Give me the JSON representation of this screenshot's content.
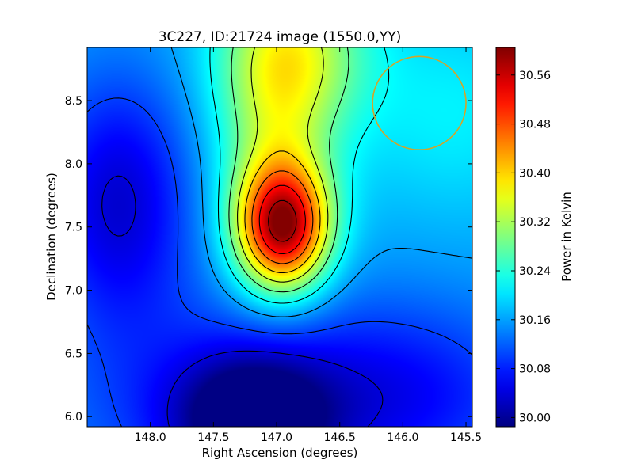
{
  "chart_data": {
    "type": "heatmap",
    "title": "3C227, ID:21724 image (1550.0,YY)",
    "xlabel": "Right Ascension (degrees)",
    "ylabel": "Declination (degrees)",
    "colorbar_label": "Power in Kelvin",
    "xlim": [
      148.5,
      145.45
    ],
    "ylim": [
      5.92,
      8.92
    ],
    "x_reversed": true,
    "x_ticks": [
      148.0,
      147.5,
      147.0,
      146.5,
      146.0,
      145.5
    ],
    "x_tick_labels": [
      "148.0",
      "147.5",
      "147.0",
      "146.5",
      "146.0",
      "145.5"
    ],
    "y_ticks": [
      6.0,
      6.5,
      7.0,
      7.5,
      8.0,
      8.5
    ],
    "y_tick_labels": [
      "6.0",
      "6.5",
      "7.0",
      "7.5",
      "8.0",
      "8.5"
    ],
    "colorbar_range": [
      29.985,
      30.605
    ],
    "colorbar_ticks": [
      30.0,
      30.08,
      30.16,
      30.24,
      30.32,
      30.4,
      30.48,
      30.56
    ],
    "colorbar_tick_labels": [
      "30.00",
      "30.08",
      "30.16",
      "30.24",
      "30.32",
      "30.40",
      "30.48",
      "30.56"
    ],
    "colormap": "jet",
    "peak": {
      "ra": 146.95,
      "dec": 7.5,
      "value": 30.6
    },
    "minimum": {
      "ra": 147.2,
      "dec": 5.95,
      "value": 29.99
    },
    "contour_levels": [
      30.04,
      30.1,
      30.16,
      30.22,
      30.28,
      30.34,
      30.4,
      30.46,
      30.52,
      30.58
    ],
    "beam": {
      "ra": 145.87,
      "dec": 8.48,
      "radius_deg": 0.37,
      "color": "#d4a428"
    },
    "contour_color": "#000000"
  }
}
